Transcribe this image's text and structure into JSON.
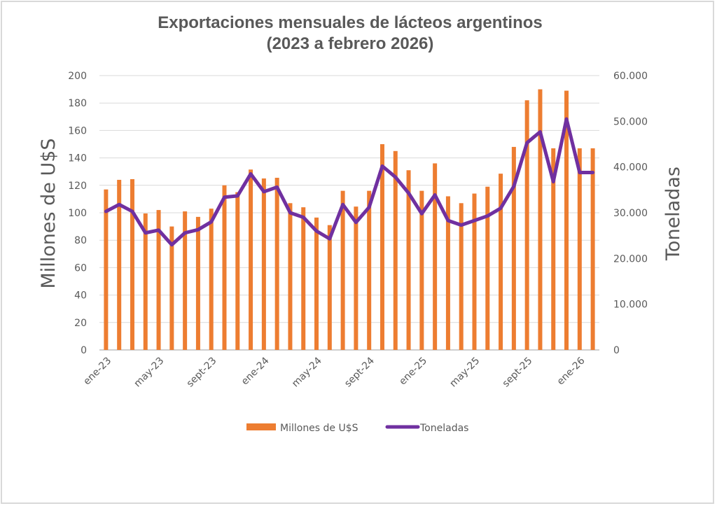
{
  "chart_data": {
    "type": "bar",
    "combo": "bar + line (dual axis)",
    "title": "Exportaciones mensuales de lácteos argentinos",
    "subtitle": "(2023 a febrero 2026)",
    "categories": [
      "ene-23",
      "feb-23",
      "mar-23",
      "abr-23",
      "may-23",
      "jun-23",
      "jul-23",
      "ago-23",
      "sept-23",
      "oct-23",
      "nov-23",
      "dic-23",
      "ene-24",
      "feb-24",
      "mar-24",
      "abr-24",
      "may-24",
      "jun-24",
      "jul-24",
      "ago-24",
      "sept-24",
      "oct-24",
      "nov-24",
      "dic-24",
      "ene-25",
      "feb-25",
      "mar-25",
      "abr-25",
      "may-25",
      "jun-25",
      "jul-25",
      "ago-25",
      "sept-25",
      "oct-25",
      "nov-25",
      "dic-25",
      "ene-26",
      "feb-26"
    ],
    "x_tick_labels": [
      "ene-23",
      "may-23",
      "sept-23",
      "ene-24",
      "may-24",
      "sept-24",
      "ene-25",
      "may-25",
      "sept-25",
      "ene-26"
    ],
    "series": [
      {
        "name": "Millones de U$S",
        "type": "bar",
        "axis": "left",
        "color": "#ED7D31",
        "values": [
          117,
          124,
          124.5,
          99.5,
          102,
          90,
          101,
          97,
          103,
          120,
          115,
          131.5,
          125,
          125.5,
          107,
          104,
          96.5,
          91,
          116,
          104.5,
          116,
          150,
          145,
          131,
          116,
          136,
          112,
          107,
          114,
          119,
          128.5,
          148,
          182,
          190,
          147,
          189,
          147,
          147
        ]
      },
      {
        "name": "Toneladas",
        "type": "line",
        "axis": "right",
        "color": "#7030A0",
        "values": [
          30300,
          31800,
          30300,
          25600,
          26200,
          23000,
          25600,
          26300,
          28000,
          33400,
          33700,
          38500,
          34600,
          35600,
          30000,
          29000,
          26000,
          24300,
          31800,
          27900,
          31200,
          40200,
          37800,
          34300,
          29800,
          33900,
          28300,
          27300,
          28300,
          29300,
          31000,
          35800,
          45300,
          47700,
          36800,
          50500,
          38800,
          38800
        ]
      }
    ],
    "ylabel": "Millones de U$S",
    "ylim": [
      0,
      200
    ],
    "yticks": [
      "0",
      "20",
      "40",
      "60",
      "80",
      "100",
      "120",
      "140",
      "160",
      "180",
      "200"
    ],
    "y2label": "Toneladas",
    "y2lim": [
      0,
      60000
    ],
    "y2ticks": [
      "0",
      "10.000",
      "20.000",
      "30.000",
      "40.000",
      "50.000",
      "60.000"
    ],
    "grid": true,
    "legend": {
      "position": "bottom",
      "entries": [
        "Millones de U$S",
        "Toneladas"
      ]
    }
  }
}
